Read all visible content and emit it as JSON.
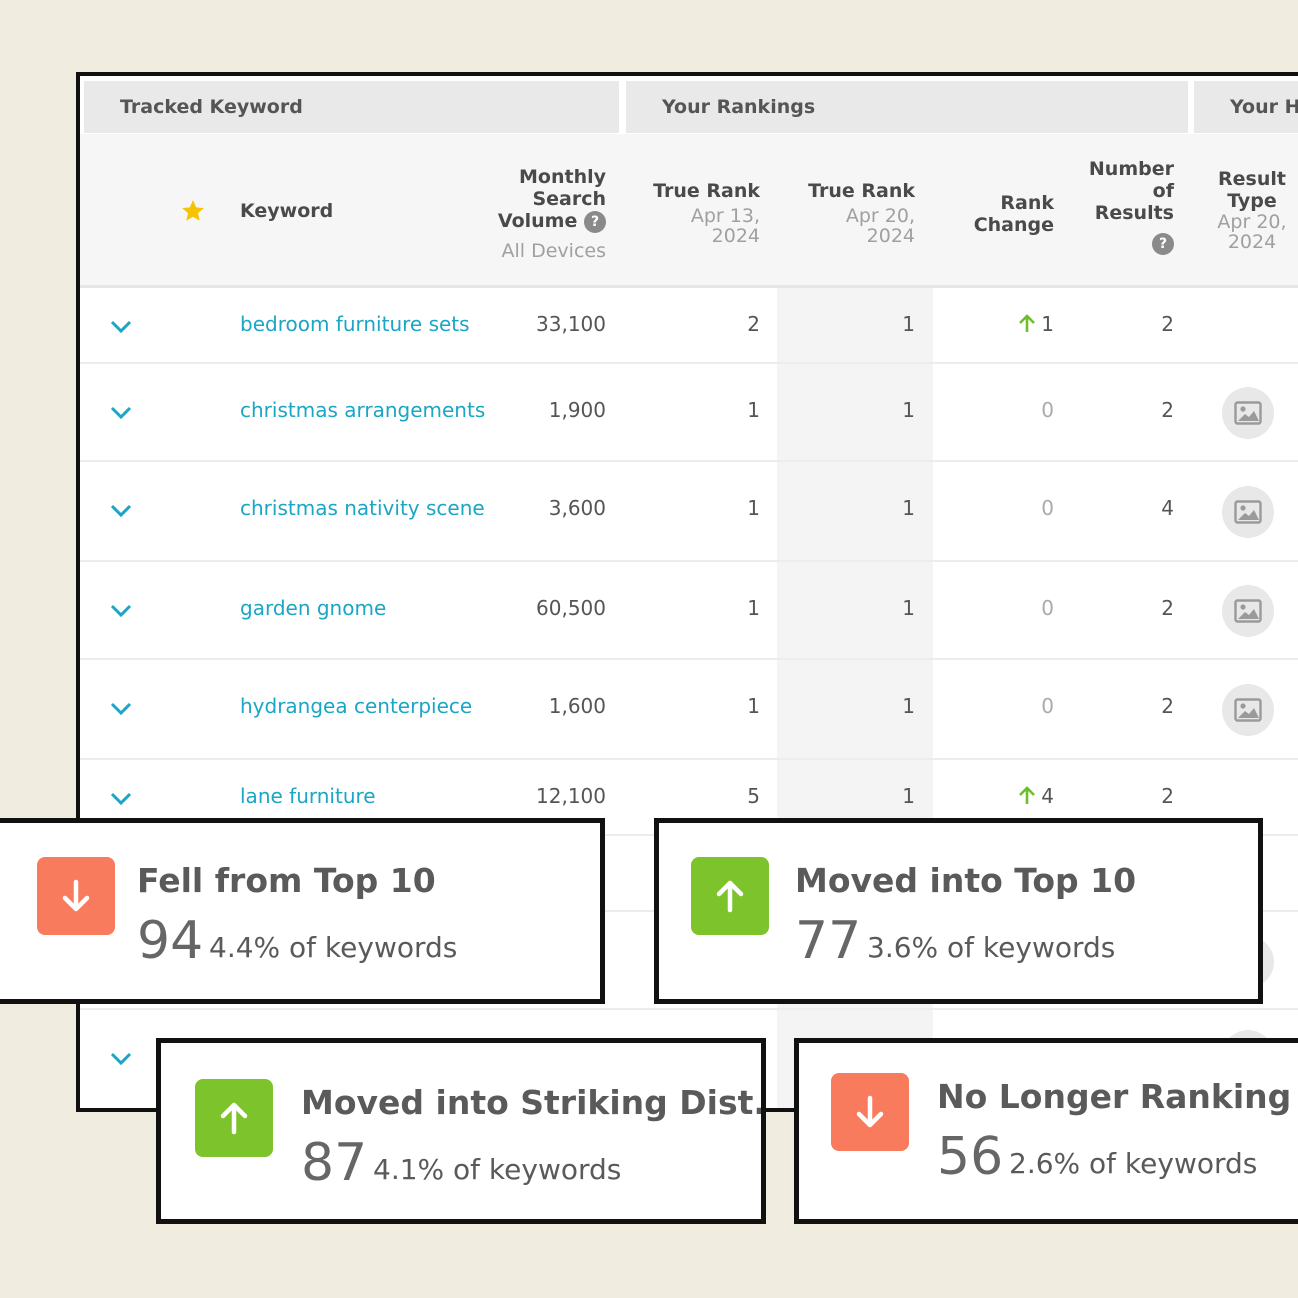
{
  "groups": {
    "tracked_keyword": "Tracked Keyword",
    "your_rankings": "Your Rankings",
    "your_history": "Your Hi"
  },
  "headers": {
    "keyword": "Keyword",
    "volume_line1": "Monthly",
    "volume_line2": "Search",
    "volume_line3": "Volume",
    "volume_sub": "All Devices",
    "rank1_label": "True Rank",
    "rank1_date_line1": "Apr 13,",
    "rank1_date_line2": "2024",
    "rank2_label": "True Rank",
    "rank2_date_line1": "Apr 20,",
    "rank2_date_line2": "2024",
    "change_line1": "Rank",
    "change_line2": "Change",
    "results_line1": "Number",
    "results_line2": "of",
    "results_line3": "Results",
    "type_line1": "Result",
    "type_line2": "Type",
    "type_date_line1": "Apr 20,",
    "type_date_line2": "2024",
    "help_symbol": "?"
  },
  "rows": [
    {
      "keyword": "bedroom furniture sets",
      "volume": "33,100",
      "rank_prev": "2",
      "rank_curr": "1",
      "change": "1",
      "change_dir": "up",
      "results": "2",
      "result_type_icon": ""
    },
    {
      "keyword": "christmas arrangements",
      "volume": "1,900",
      "rank_prev": "1",
      "rank_curr": "1",
      "change": "0",
      "change_dir": "none",
      "results": "2",
      "result_type_icon": "image-icon"
    },
    {
      "keyword": "christmas nativity scene",
      "volume": "3,600",
      "rank_prev": "1",
      "rank_curr": "1",
      "change": "0",
      "change_dir": "none",
      "results": "4",
      "result_type_icon": "image-icon"
    },
    {
      "keyword": "garden gnome",
      "volume": "60,500",
      "rank_prev": "1",
      "rank_curr": "1",
      "change": "0",
      "change_dir": "none",
      "results": "2",
      "result_type_icon": "image-icon"
    },
    {
      "keyword": "hydrangea centerpiece",
      "volume": "1,600",
      "rank_prev": "1",
      "rank_curr": "1",
      "change": "0",
      "change_dir": "none",
      "results": "2",
      "result_type_icon": "image-icon"
    },
    {
      "keyword": "lane furniture",
      "volume": "12,100",
      "rank_prev": "5",
      "rank_curr": "1",
      "change": "4",
      "change_dir": "up",
      "results": "2",
      "result_type_icon": ""
    }
  ],
  "cards": [
    {
      "title": "Fell from Top 10",
      "count": "94",
      "percent": "4.4% of keywords",
      "direction": "down",
      "color": "#f97b5d"
    },
    {
      "title": "Moved into Top 10",
      "count": "77",
      "percent": "3.6% of keywords",
      "direction": "up",
      "color": "#7dc32b"
    },
    {
      "title": "Moved into Striking Dist...",
      "count": "87",
      "percent": "4.1% of keywords",
      "direction": "up",
      "color": "#7dc32b"
    },
    {
      "title": "No Longer Ranking",
      "count": "56",
      "percent": "2.6% of keywords",
      "direction": "down",
      "color": "#f97b5d"
    }
  ],
  "colors": {
    "background": "#f0ede0",
    "keyword_link": "#1aa6c4",
    "up_arrow": "#6cbf2a",
    "star": "#f5c400"
  }
}
